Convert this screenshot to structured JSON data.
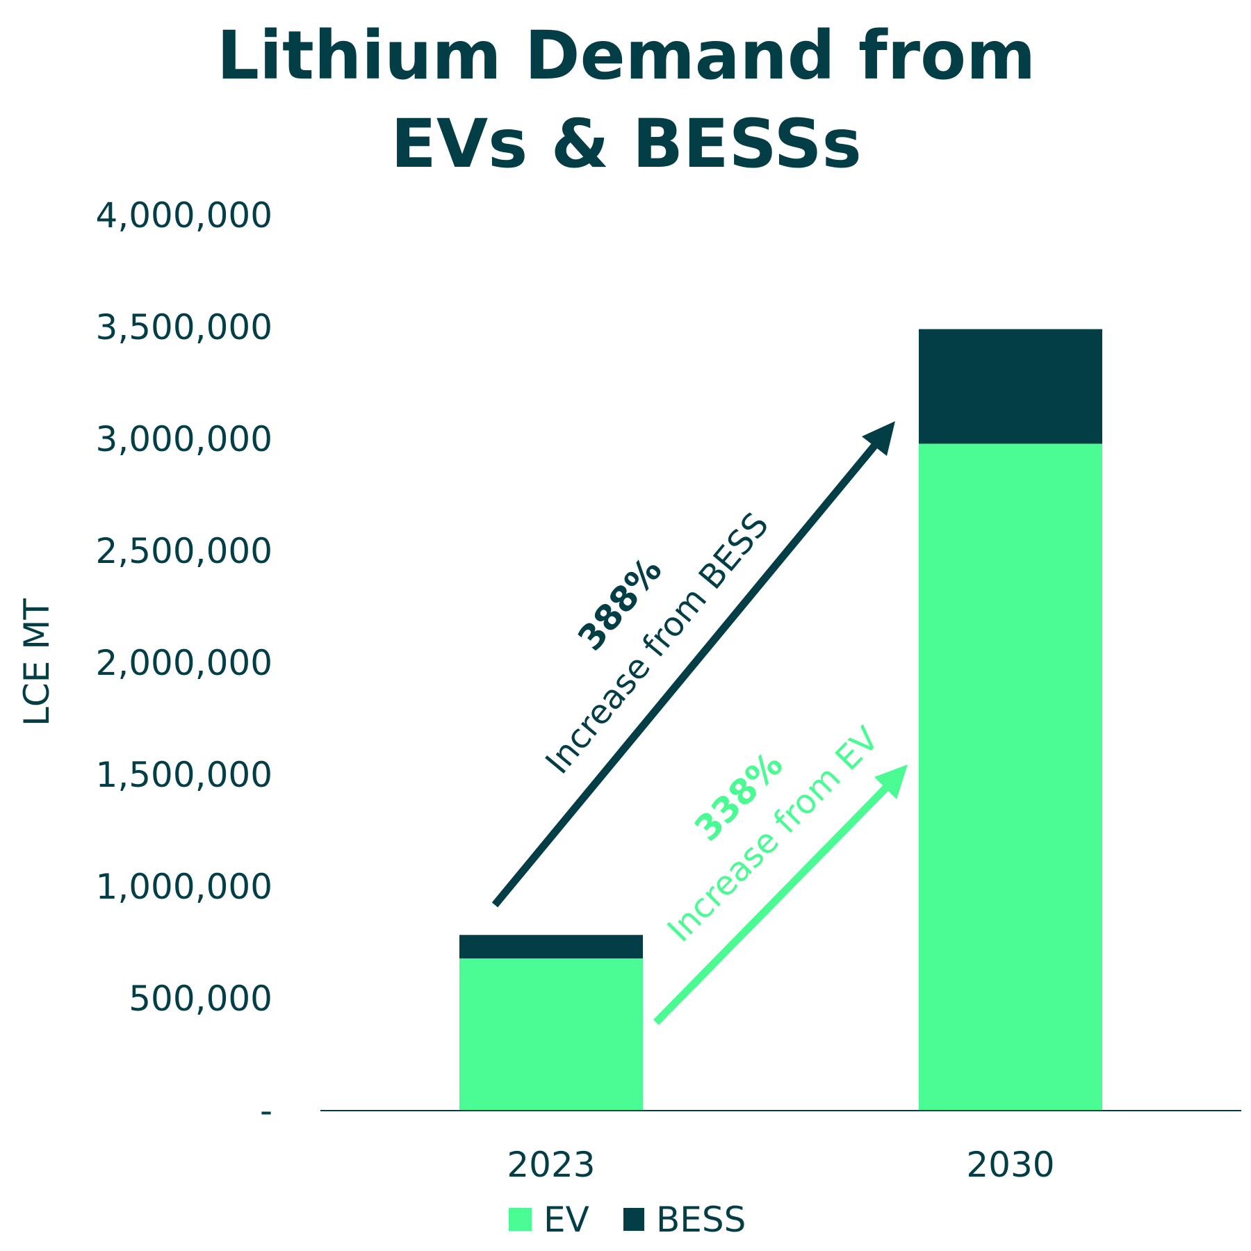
{
  "chart_data": {
    "type": "bar",
    "stacked": true,
    "title": [
      "Lithium Demand from",
      "EVs & BESSs"
    ],
    "xlabel": "",
    "ylabel": "LCE MT",
    "categories": [
      "2023",
      "2030"
    ],
    "series": [
      {
        "name": "EV",
        "values": [
          680000,
          2980000
        ],
        "color": "#4afa93"
      },
      {
        "name": "BESS",
        "values": [
          105000,
          512000
        ],
        "color": "#033d45"
      }
    ],
    "ylim": [
      0,
      4000000
    ],
    "yticks": [
      0,
      500000,
      1000000,
      1500000,
      2000000,
      2500000,
      3000000,
      3500000,
      4000000
    ],
    "ytick_labels": [
      "-",
      "500,000",
      "1,000,000",
      "1,500,000",
      "2,000,000",
      "2,500,000",
      "3,000,000",
      "3,500,000",
      "4,000,000"
    ],
    "grid": false,
    "legend_position": "bottom",
    "annotations": [
      {
        "value": "388%",
        "text": "Increase from BESS",
        "color": "#033d45"
      },
      {
        "value": "338%",
        "text": "Increase from EV",
        "color": "#4afa93"
      }
    ]
  }
}
